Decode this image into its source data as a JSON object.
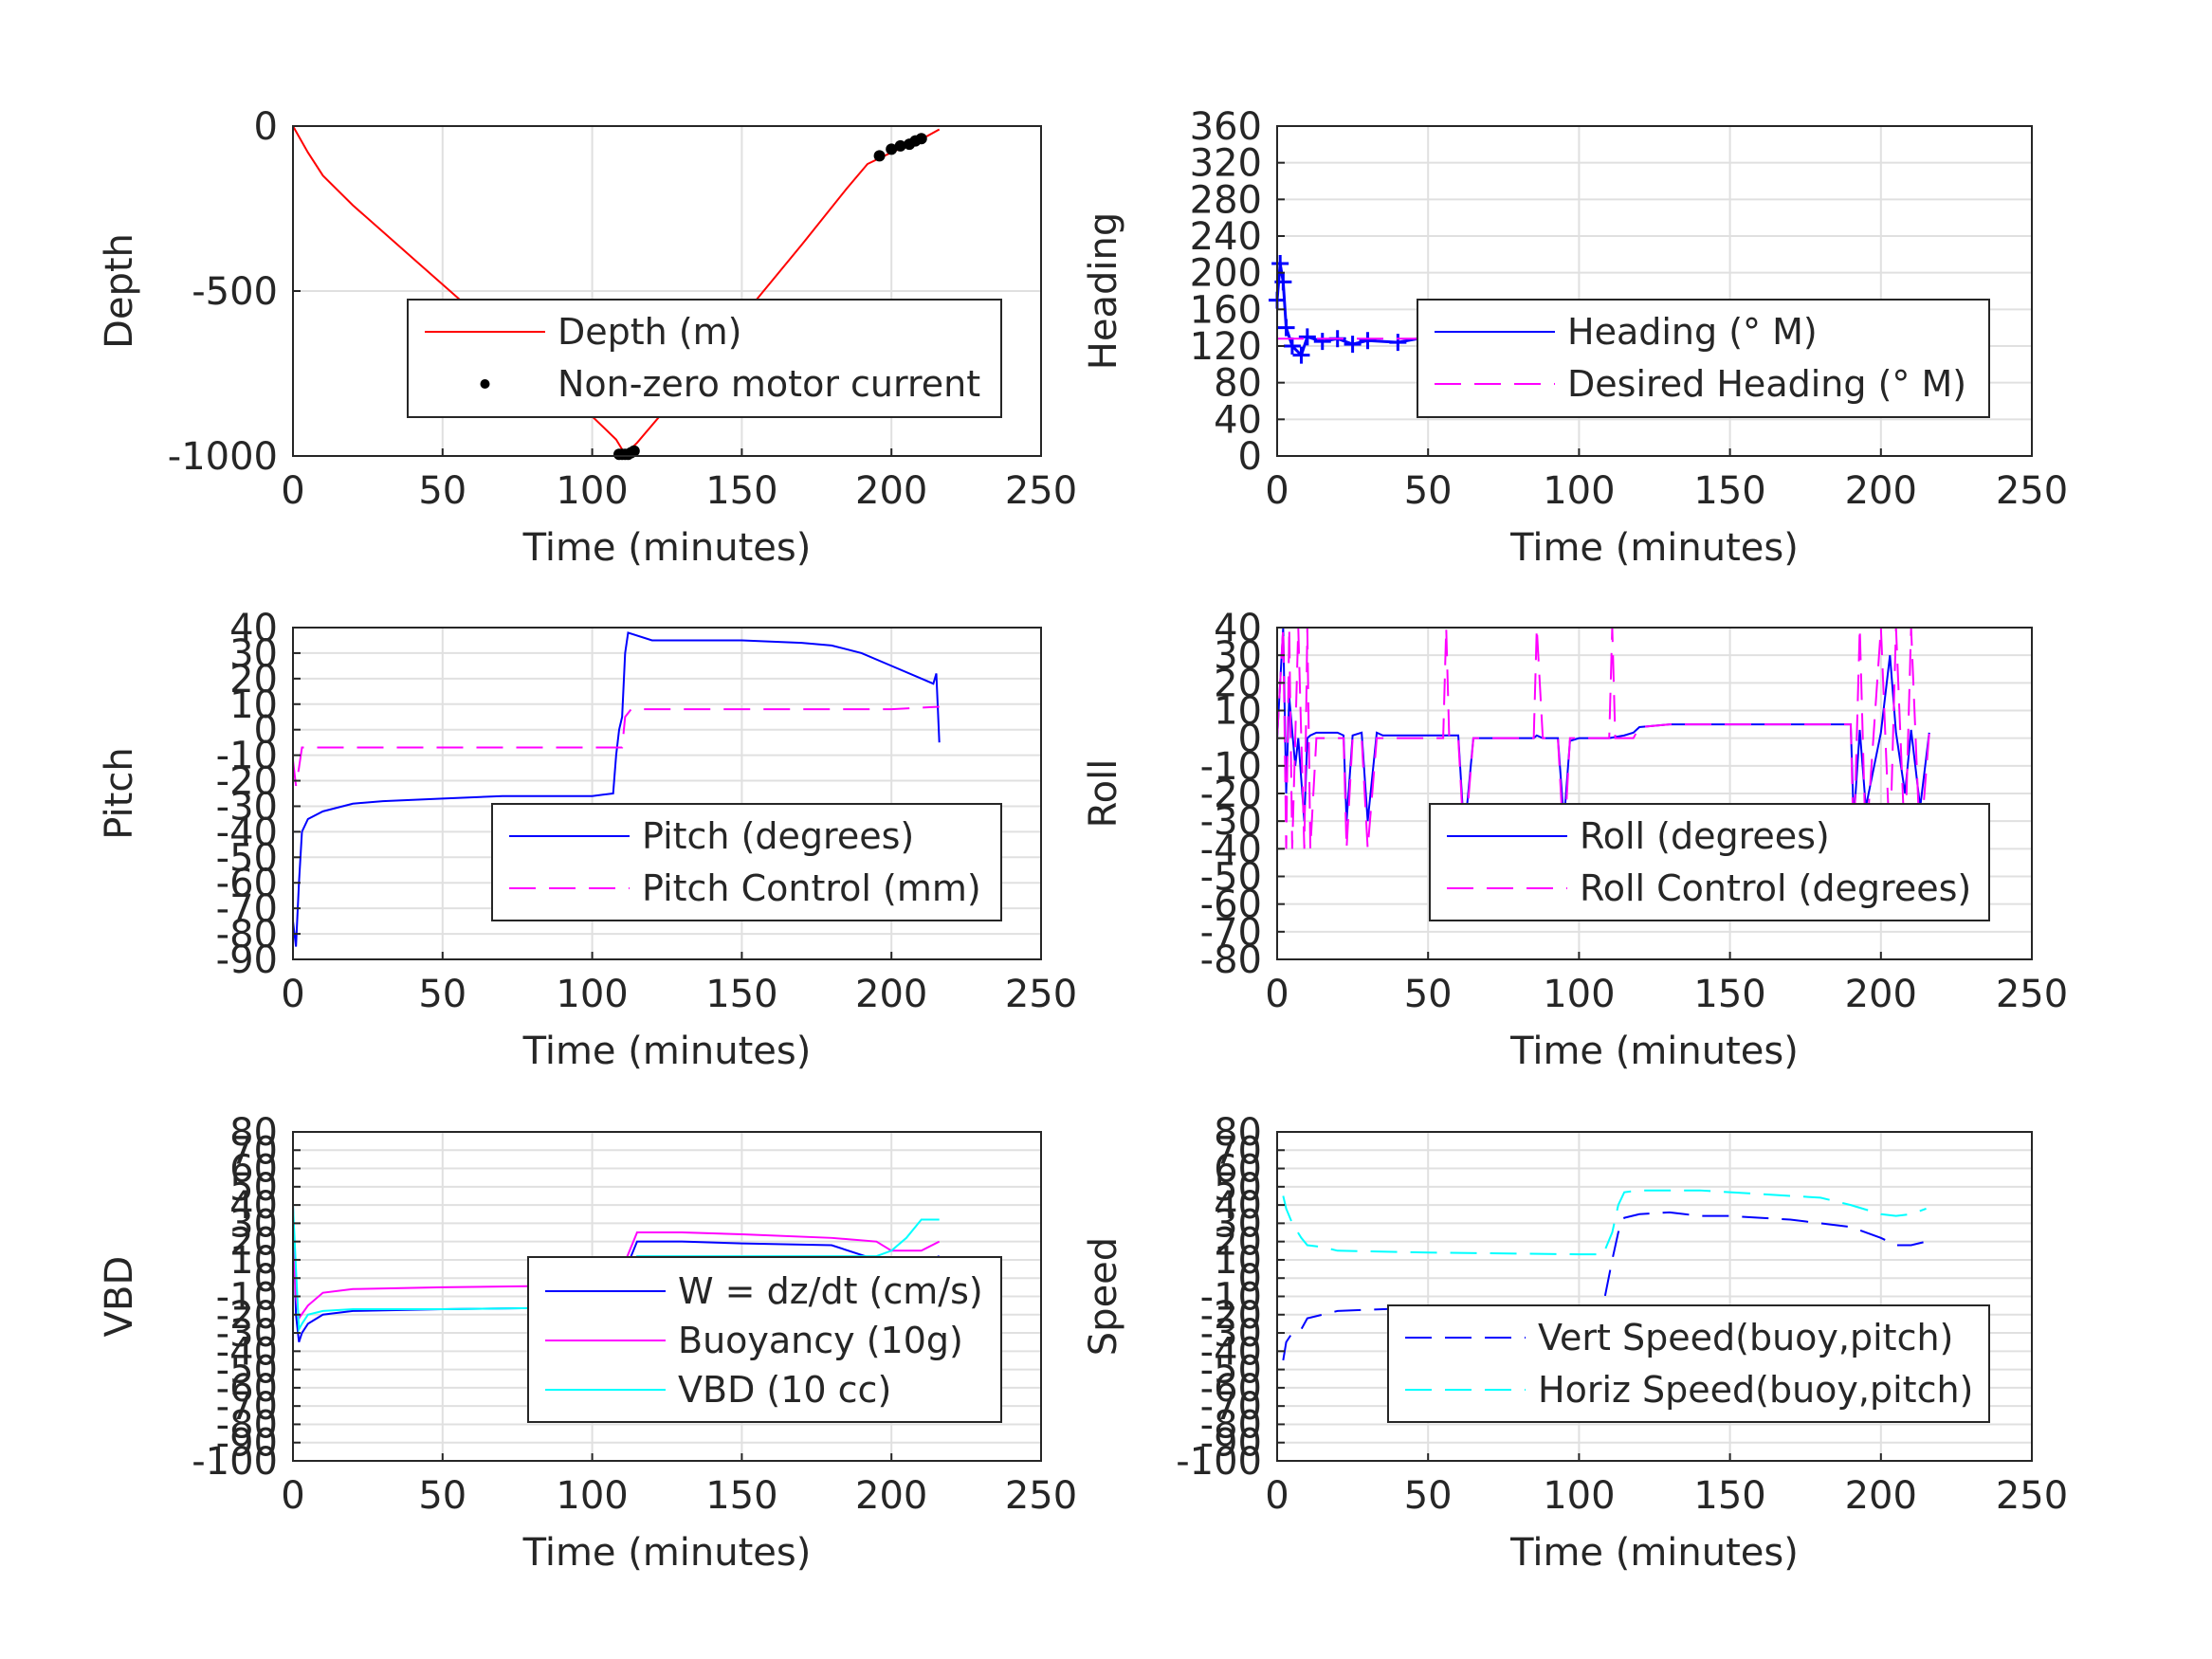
{
  "figure": {
    "background": "#ffffff",
    "grid_color": "#e0e0e0",
    "axis_color": "#262626"
  },
  "chart_data": [
    {
      "id": "depth",
      "type": "line",
      "xlabel": "Time (minutes)",
      "ylabel": "Depth",
      "xlim": [
        0,
        250
      ],
      "ylim": [
        -1000,
        0
      ],
      "xticks": [
        "0",
        "50",
        "100",
        "150",
        "200",
        "250"
      ],
      "xtick_values": [
        0,
        50,
        100,
        150,
        200,
        250
      ],
      "yticks": [
        "-1000",
        "-500",
        "0"
      ],
      "ytick_values": [
        -1000,
        -500,
        0
      ],
      "grid": true,
      "legend_position": "lower-right",
      "series": [
        {
          "name": "Depth (m)",
          "color": "#ff0000",
          "style": "solid",
          "x": [
            0,
            5,
            10,
            20,
            40,
            60,
            80,
            100,
            108,
            111,
            115,
            130,
            150,
            170,
            185,
            192,
            200,
            210,
            216
          ],
          "y": [
            0,
            -80,
            -150,
            -240,
            -400,
            -560,
            -720,
            -880,
            -950,
            -995,
            -960,
            -800,
            -580,
            -360,
            -190,
            -115,
            -80,
            -40,
            -10
          ]
        },
        {
          "name": "Non-zero motor current",
          "color": "#000000",
          "style": "markers",
          "x": [
            109,
            110,
            111,
            112,
            113,
            114,
            196,
            200,
            203,
            206,
            208,
            210
          ],
          "y": [
            -995,
            -995,
            -995,
            -995,
            -990,
            -985,
            -90,
            -70,
            -60,
            -55,
            -45,
            -38
          ]
        }
      ]
    },
    {
      "id": "heading",
      "type": "line",
      "xlabel": "Time (minutes)",
      "ylabel": "Heading",
      "xlim": [
        0,
        250
      ],
      "ylim": [
        0,
        360
      ],
      "xticks": [
        "0",
        "50",
        "100",
        "150",
        "200",
        "250"
      ],
      "xtick_values": [
        0,
        50,
        100,
        150,
        200,
        250
      ],
      "yticks": [
        "0",
        "40",
        "80",
        "120",
        "160",
        "200",
        "240",
        "280",
        "320",
        "360"
      ],
      "ytick_values": [
        0,
        40,
        80,
        120,
        160,
        200,
        240,
        280,
        320,
        360
      ],
      "grid": true,
      "legend_position": "right",
      "series": [
        {
          "name": "Heading (° M)",
          "color": "#0000ff",
          "style": "plus-markers",
          "x": [
            0,
            1,
            2,
            3,
            5,
            8,
            10,
            15,
            20,
            25,
            30,
            40,
            50,
            60,
            70,
            80,
            85,
            90,
            100,
            110,
            120,
            130,
            140,
            150,
            155,
            160,
            170,
            180,
            185,
            190,
            195,
            200,
            203,
            206,
            210,
            215
          ],
          "y": [
            170,
            210,
            190,
            140,
            120,
            110,
            130,
            125,
            128,
            122,
            126,
            124,
            130,
            128,
            126,
            132,
            140,
            128,
            125,
            130,
            122,
            120,
            118,
            115,
            105,
            120,
            125,
            128,
            110,
            115,
            140,
            150,
            120,
            145,
            130,
            140
          ]
        },
        {
          "name": "Desired Heading (° M)",
          "color": "#ff00ff",
          "style": "dashed",
          "x": [
            0,
            215
          ],
          "y": [
            128,
            128
          ]
        }
      ]
    },
    {
      "id": "pitch",
      "type": "line",
      "xlabel": "Time (minutes)",
      "ylabel": "Pitch",
      "xlim": [
        0,
        250
      ],
      "ylim": [
        -90,
        40
      ],
      "xticks": [
        "0",
        "50",
        "100",
        "150",
        "200",
        "250"
      ],
      "xtick_values": [
        0,
        50,
        100,
        150,
        200,
        250
      ],
      "yticks": [
        "-90",
        "-80",
        "-70",
        "-60",
        "-50",
        "-40",
        "-30",
        "-20",
        "-10",
        "0",
        "10",
        "20",
        "30",
        "40"
      ],
      "ytick_values": [
        -90,
        -80,
        -70,
        -60,
        -50,
        -40,
        -30,
        -20,
        -10,
        0,
        10,
        20,
        30,
        40
      ],
      "grid": true,
      "legend_position": "lower-right",
      "series": [
        {
          "name": "Pitch (degrees)",
          "color": "#0000ff",
          "style": "solid",
          "x": [
            0,
            1,
            2,
            3,
            5,
            10,
            20,
            30,
            50,
            70,
            90,
            100,
            107,
            108,
            109,
            110,
            111,
            112,
            120,
            130,
            150,
            170,
            180,
            190,
            200,
            210,
            214,
            215,
            216
          ],
          "y": [
            -75,
            -85,
            -60,
            -40,
            -35,
            -32,
            -29,
            -28,
            -27,
            -26,
            -26,
            -26,
            -25,
            -10,
            0,
            5,
            30,
            38,
            35,
            35,
            35,
            34,
            33,
            30,
            25,
            20,
            18,
            22,
            -5
          ]
        },
        {
          "name": "Pitch Control (mm)",
          "color": "#ff00ff",
          "style": "dashed",
          "x": [
            0,
            1,
            2,
            3,
            50,
            100,
            105,
            110,
            111,
            113,
            150,
            200,
            216
          ],
          "y": [
            -12,
            -22,
            -15,
            -7,
            -7,
            -7,
            -7,
            -7,
            5,
            8,
            8,
            8,
            9
          ]
        }
      ]
    },
    {
      "id": "roll",
      "type": "line",
      "xlabel": "Time (minutes)",
      "ylabel": "Roll",
      "xlim": [
        0,
        250
      ],
      "ylim": [
        -80,
        40
      ],
      "xticks": [
        "0",
        "50",
        "100",
        "150",
        "200",
        "250"
      ],
      "xtick_values": [
        0,
        50,
        100,
        150,
        200,
        250
      ],
      "yticks": [
        "-80",
        "-70",
        "-60",
        "-50",
        "-40",
        "-30",
        "-20",
        "-10",
        "0",
        "10",
        "20",
        "30",
        "40"
      ],
      "ytick_values": [
        -80,
        -70,
        -60,
        -50,
        -40,
        -30,
        -20,
        -10,
        0,
        10,
        20,
        30,
        40
      ],
      "grid": true,
      "legend_position": "lower-right",
      "series": [
        {
          "name": "Roll (degrees)",
          "color": "#0000ff",
          "style": "solid",
          "x": [
            0,
            2,
            3,
            4,
            6,
            7,
            9,
            10,
            11,
            13,
            20,
            22,
            23,
            25,
            28,
            30,
            33,
            35,
            40,
            50,
            55,
            58,
            60,
            62,
            65,
            70,
            80,
            85,
            86,
            88,
            90,
            93,
            95,
            97,
            100,
            105,
            110,
            115,
            118,
            120,
            130,
            150,
            170,
            180,
            185,
            190,
            191,
            193,
            195,
            200,
            203,
            205,
            208,
            210,
            213,
            216
          ],
          "y": [
            0,
            40,
            -20,
            15,
            -10,
            0,
            -30,
            0,
            1,
            2,
            2,
            1,
            -30,
            1,
            2,
            -30,
            2,
            1,
            1,
            1,
            1,
            1,
            1,
            -35,
            0,
            0,
            0,
            0,
            1,
            0,
            0,
            0,
            -30,
            -1,
            0,
            0,
            0,
            1,
            2,
            4,
            5,
            5,
            5,
            5,
            5,
            5,
            -30,
            3,
            -25,
            2,
            30,
            2,
            -20,
            3,
            -25,
            2
          ]
        },
        {
          "name": "Roll Control (degrees)",
          "color": "#ff00ff",
          "style": "dashed",
          "x": [
            0,
            2,
            3,
            4,
            5,
            7,
            9,
            10,
            11,
            13,
            20,
            22,
            23,
            25,
            28,
            30,
            33,
            35,
            40,
            50,
            55,
            56,
            57,
            60,
            62,
            65,
            70,
            80,
            85,
            86,
            88,
            90,
            93,
            95,
            97,
            100,
            105,
            110,
            111,
            112,
            115,
            118,
            120,
            130,
            150,
            170,
            180,
            185,
            190,
            191,
            193,
            195,
            200,
            203,
            205,
            208,
            210,
            213,
            216
          ],
          "y": [
            0,
            40,
            -40,
            40,
            -40,
            40,
            -40,
            40,
            -40,
            0,
            0,
            0,
            -40,
            0,
            0,
            -40,
            0,
            0,
            0,
            0,
            0,
            40,
            0,
            0,
            -40,
            0,
            0,
            0,
            0,
            40,
            0,
            0,
            0,
            -40,
            0,
            0,
            0,
            0,
            40,
            0,
            0,
            0,
            4,
            5,
            5,
            5,
            5,
            5,
            5,
            -40,
            40,
            -40,
            40,
            -40,
            40,
            -40,
            40,
            -40,
            2
          ]
        }
      ]
    },
    {
      "id": "vbd",
      "type": "line",
      "xlabel": "Time (minutes)",
      "ylabel": "VBD",
      "xlim": [
        0,
        250
      ],
      "ylim": [
        -100,
        80
      ],
      "xticks": [
        "0",
        "50",
        "100",
        "150",
        "200",
        "250"
      ],
      "xtick_values": [
        0,
        50,
        100,
        150,
        200,
        250
      ],
      "yticks": [
        "-100",
        "-90",
        "-80",
        "-70",
        "-60",
        "-50",
        "-40",
        "-30",
        "-20",
        "-10",
        "0",
        "10",
        "20",
        "30",
        "40",
        "50",
        "60",
        "70",
        "80"
      ],
      "ytick_values": [
        -100,
        -90,
        -80,
        -70,
        -60,
        -50,
        -40,
        -30,
        -20,
        -10,
        0,
        10,
        20,
        30,
        40,
        50,
        60,
        70,
        80
      ],
      "grid": true,
      "legend_position": "lower-right",
      "series": [
        {
          "name": "W = dz/dt (cm/s)",
          "color": "#0000ff",
          "style": "solid",
          "x": [
            0,
            1,
            2,
            3,
            5,
            10,
            20,
            50,
            100,
            108,
            110,
            115,
            130,
            150,
            180,
            195,
            200,
            210,
            216
          ],
          "y": [
            40,
            -20,
            -35,
            -30,
            -25,
            -20,
            -18,
            -17,
            -16,
            -15,
            0,
            20,
            20,
            19,
            18,
            10,
            8,
            8,
            12
          ]
        },
        {
          "name": "Buoyancy (10g)",
          "color": "#ff00ff",
          "style": "solid",
          "x": [
            0,
            1,
            2,
            5,
            10,
            20,
            50,
            100,
            108,
            110,
            115,
            130,
            150,
            180,
            195,
            200,
            210,
            216
          ],
          "y": [
            20,
            -10,
            -22,
            -15,
            -8,
            -6,
            -5,
            -4,
            -4,
            5,
            25,
            25,
            24,
            22,
            20,
            15,
            15,
            20
          ]
        },
        {
          "name": "VBD (10 cc)",
          "color": "#00ffff",
          "style": "solid",
          "x": [
            0,
            1,
            2,
            3,
            5,
            10,
            20,
            50,
            100,
            108,
            110,
            115,
            130,
            150,
            180,
            195,
            200,
            205,
            210,
            216
          ],
          "y": [
            40,
            5,
            -28,
            -25,
            -20,
            -18,
            -17,
            -17,
            -16,
            -15,
            2,
            12,
            12,
            12,
            12,
            12,
            15,
            22,
            32,
            32
          ]
        }
      ]
    },
    {
      "id": "speed",
      "type": "line",
      "xlabel": "Time (minutes)",
      "ylabel": "Speed",
      "xlim": [
        0,
        250
      ],
      "ylim": [
        -100,
        80
      ],
      "xticks": [
        "0",
        "50",
        "100",
        "150",
        "200",
        "250"
      ],
      "xtick_values": [
        0,
        50,
        100,
        150,
        200,
        250
      ],
      "yticks": [
        "-100",
        "-90",
        "-80",
        "-70",
        "-60",
        "-50",
        "-40",
        "-30",
        "-20",
        "-10",
        "0",
        "10",
        "20",
        "30",
        "40",
        "50",
        "60",
        "70",
        "80"
      ],
      "ytick_values": [
        -100,
        -90,
        -80,
        -70,
        -60,
        -50,
        -40,
        -30,
        -20,
        -10,
        0,
        10,
        20,
        30,
        40,
        50,
        60,
        70,
        80
      ],
      "grid": true,
      "legend_position": "lower-right",
      "series": [
        {
          "name": "Vert Speed(buoy,pitch)",
          "color": "#0000ff",
          "style": "dashed",
          "x": [
            2,
            3,
            5,
            8,
            10,
            15,
            20,
            50,
            100,
            108,
            111,
            113,
            115,
            120,
            130,
            140,
            150,
            160,
            170,
            180,
            190,
            200,
            205,
            210,
            215
          ],
          "y": [
            -45,
            -35,
            -30,
            -28,
            -22,
            -20,
            -18,
            -16,
            -15,
            -15,
            10,
            25,
            33,
            35,
            36,
            34,
            34,
            33,
            32,
            30,
            28,
            22,
            18,
            18,
            20
          ]
        },
        {
          "name": "Horiz Speed(buoy,pitch)",
          "color": "#00ffff",
          "style": "dashed",
          "x": [
            2,
            3,
            5,
            8,
            10,
            15,
            20,
            50,
            100,
            108,
            111,
            113,
            115,
            120,
            130,
            140,
            150,
            160,
            170,
            180,
            190,
            200,
            205,
            210,
            215
          ],
          "y": [
            45,
            38,
            30,
            22,
            18,
            17,
            15,
            14,
            13,
            13,
            25,
            40,
            47,
            48,
            48,
            48,
            47,
            46,
            45,
            44,
            40,
            35,
            34,
            35,
            38
          ]
        }
      ]
    }
  ]
}
